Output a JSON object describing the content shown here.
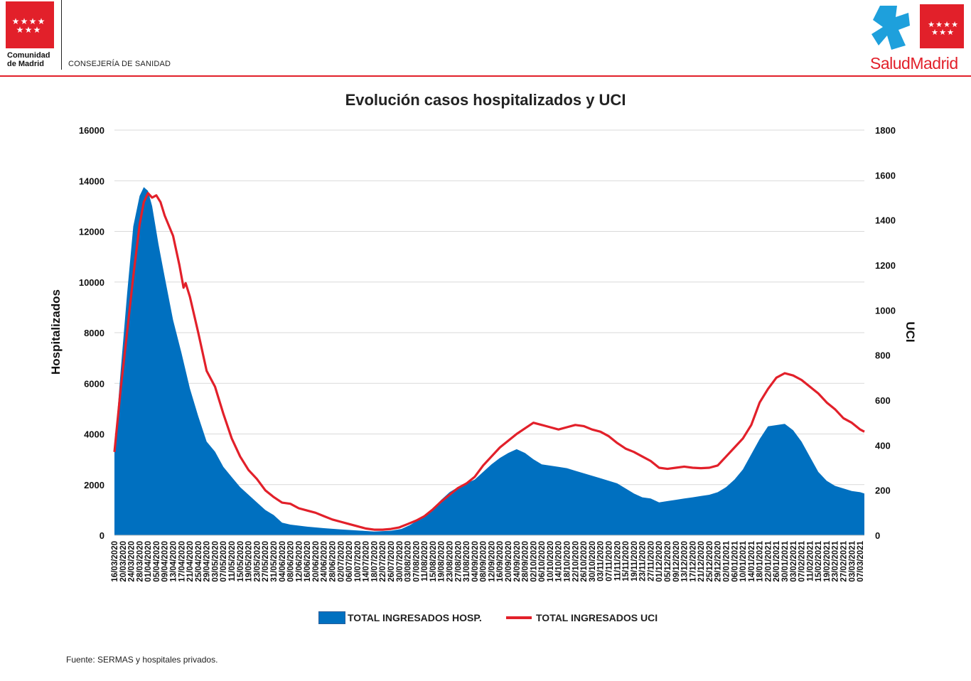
{
  "header": {
    "org_name": "Comunidad\nde Madrid",
    "department": "CONSEJERÍA DE SANIDAD",
    "brand": "SaludMadrid",
    "colors": {
      "accent_red": "#e2202a",
      "brand_blue": "#1ea0dc"
    }
  },
  "chart_data": {
    "type": "area",
    "title": "Evolución casos hospitalizados y UCI",
    "ylabel": "Hospitalizados",
    "y2label": "UCI",
    "ylim": [
      0,
      16000
    ],
    "y2lim": [
      0,
      1800
    ],
    "yticks": [
      0,
      2000,
      4000,
      6000,
      8000,
      10000,
      12000,
      14000,
      16000
    ],
    "y2ticks": [
      0,
      200,
      400,
      600,
      800,
      1000,
      1200,
      1400,
      1600,
      1800
    ],
    "grid": true,
    "legend_position": "bottom",
    "x_start": "16/03/2020",
    "x_end": "09/03/2021",
    "x_tick_labels": [
      "16/03/2020",
      "20/03/2020",
      "24/03/2020",
      "28/03/2020",
      "01/04/2020",
      "05/04/2020",
      "09/04/2020",
      "13/04/2020",
      "17/04/2020",
      "21/04/2020",
      "25/04/2020",
      "29/04/2020",
      "03/05/2020",
      "07/05/2020",
      "11/05/2020",
      "15/05/2020",
      "19/05/2020",
      "23/05/2020",
      "27/05/2020",
      "31/05/2020",
      "04/06/2020",
      "08/06/2020",
      "12/06/2020",
      "16/06/2020",
      "20/06/2020",
      "24/06/2020",
      "28/06/2020",
      "02/07/2020",
      "06/07/2020",
      "10/07/2020",
      "14/07/2020",
      "18/07/2020",
      "22/07/2020",
      "26/07/2020",
      "30/07/2020",
      "03/08/2020",
      "07/08/2020",
      "11/08/2020",
      "15/08/2020",
      "19/08/2020",
      "23/08/2020",
      "27/08/2020",
      "31/08/2020",
      "04/09/2020",
      "08/09/2020",
      "12/09/2020",
      "16/09/2020",
      "20/09/2020",
      "24/09/2020",
      "28/09/2020",
      "02/10/2020",
      "06/10/2020",
      "10/10/2020",
      "14/10/2020",
      "18/10/2020",
      "22/10/2020",
      "26/10/2020",
      "30/10/2020",
      "03/11/2020",
      "07/11/2020",
      "11/11/2020",
      "15/11/2020",
      "19/11/2020",
      "23/11/2020",
      "27/11/2020",
      "01/12/2020",
      "05/12/2020",
      "09/12/2020",
      "13/12/2020",
      "17/12/2020",
      "21/12/2020",
      "25/12/2020",
      "29/12/2020",
      "02/01/2021",
      "06/01/2021",
      "10/01/2021",
      "14/01/2021",
      "18/01/2021",
      "22/01/2021",
      "26/01/2021",
      "30/01/2021",
      "03/02/2021",
      "07/02/2021",
      "11/02/2021",
      "15/02/2021",
      "19/02/2021",
      "23/02/2021",
      "27/02/2021",
      "03/03/2021",
      "07/03/2021"
    ],
    "series": [
      {
        "name": "TOTAL INGRESADOS HOSP.",
        "type": "area",
        "axis": "left",
        "color": "#0070c0",
        "points": [
          [
            "16/03/2020",
            3300
          ],
          [
            "19/03/2020",
            6500
          ],
          [
            "22/03/2020",
            9500
          ],
          [
            "25/03/2020",
            12200
          ],
          [
            "28/03/2020",
            13400
          ],
          [
            "30/03/2020",
            13750
          ],
          [
            "01/04/2020",
            13600
          ],
          [
            "03/04/2020",
            13000
          ],
          [
            "06/04/2020",
            11500
          ],
          [
            "09/04/2020",
            10200
          ],
          [
            "13/04/2020",
            8500
          ],
          [
            "17/04/2020",
            7200
          ],
          [
            "21/04/2020",
            5800
          ],
          [
            "25/04/2020",
            4700
          ],
          [
            "29/04/2020",
            3700
          ],
          [
            "03/05/2020",
            3300
          ],
          [
            "07/05/2020",
            2700
          ],
          [
            "11/05/2020",
            2300
          ],
          [
            "15/05/2020",
            1900
          ],
          [
            "19/05/2020",
            1600
          ],
          [
            "23/05/2020",
            1300
          ],
          [
            "27/05/2020",
            1000
          ],
          [
            "31/05/2020",
            800
          ],
          [
            "04/06/2020",
            500
          ],
          [
            "08/06/2020",
            420
          ],
          [
            "16/06/2020",
            340
          ],
          [
            "24/06/2020",
            280
          ],
          [
            "02/07/2020",
            230
          ],
          [
            "10/07/2020",
            190
          ],
          [
            "18/07/2020",
            150
          ],
          [
            "26/07/2020",
            180
          ],
          [
            "31/07/2020",
            250
          ],
          [
            "04/08/2020",
            400
          ],
          [
            "11/08/2020",
            750
          ],
          [
            "15/08/2020",
            1050
          ],
          [
            "19/08/2020",
            1400
          ],
          [
            "23/08/2020",
            1700
          ],
          [
            "27/08/2020",
            1900
          ],
          [
            "31/08/2020",
            2050
          ],
          [
            "04/09/2020",
            2200
          ],
          [
            "08/09/2020",
            2500
          ],
          [
            "12/09/2020",
            2800
          ],
          [
            "16/09/2020",
            3050
          ],
          [
            "20/09/2020",
            3250
          ],
          [
            "24/09/2020",
            3400
          ],
          [
            "28/09/2020",
            3250
          ],
          [
            "02/10/2020",
            3000
          ],
          [
            "06/10/2020",
            2800
          ],
          [
            "10/10/2020",
            2750
          ],
          [
            "14/10/2020",
            2700
          ],
          [
            "18/10/2020",
            2650
          ],
          [
            "22/10/2020",
            2550
          ],
          [
            "26/10/2020",
            2450
          ],
          [
            "30/10/2020",
            2350
          ],
          [
            "03/11/2020",
            2250
          ],
          [
            "07/11/2020",
            2150
          ],
          [
            "11/11/2020",
            2050
          ],
          [
            "15/11/2020",
            1850
          ],
          [
            "19/11/2020",
            1650
          ],
          [
            "23/11/2020",
            1500
          ],
          [
            "27/11/2020",
            1450
          ],
          [
            "01/12/2020",
            1300
          ],
          [
            "05/12/2020",
            1350
          ],
          [
            "09/12/2020",
            1400
          ],
          [
            "13/12/2020",
            1450
          ],
          [
            "17/12/2020",
            1500
          ],
          [
            "21/12/2020",
            1550
          ],
          [
            "25/12/2020",
            1600
          ],
          [
            "29/12/2020",
            1700
          ],
          [
            "02/01/2021",
            1900
          ],
          [
            "06/01/2021",
            2200
          ],
          [
            "10/01/2021",
            2600
          ],
          [
            "14/01/2021",
            3200
          ],
          [
            "18/01/2021",
            3800
          ],
          [
            "22/01/2021",
            4300
          ],
          [
            "26/01/2021",
            4350
          ],
          [
            "30/01/2021",
            4400
          ],
          [
            "03/02/2021",
            4150
          ],
          [
            "07/02/2021",
            3700
          ],
          [
            "11/02/2021",
            3100
          ],
          [
            "15/02/2021",
            2500
          ],
          [
            "19/02/2021",
            2150
          ],
          [
            "23/02/2021",
            1950
          ],
          [
            "27/02/2021",
            1850
          ],
          [
            "03/03/2021",
            1750
          ],
          [
            "07/03/2021",
            1700
          ],
          [
            "09/03/2021",
            1650
          ]
        ]
      },
      {
        "name": "TOTAL INGRESADOS UCI",
        "type": "line",
        "axis": "right",
        "color": "#e2202a",
        "points": [
          [
            "16/03/2020",
            370
          ],
          [
            "19/03/2020",
            650
          ],
          [
            "22/03/2020",
            900
          ],
          [
            "25/03/2020",
            1150
          ],
          [
            "28/03/2020",
            1380
          ],
          [
            "30/03/2020",
            1480
          ],
          [
            "01/04/2020",
            1520
          ],
          [
            "03/04/2020",
            1500
          ],
          [
            "05/04/2020",
            1510
          ],
          [
            "07/04/2020",
            1480
          ],
          [
            "09/04/2020",
            1420
          ],
          [
            "13/04/2020",
            1330
          ],
          [
            "16/04/2020",
            1200
          ],
          [
            "18/04/2020",
            1100
          ],
          [
            "19/04/2020",
            1120
          ],
          [
            "21/04/2020",
            1060
          ],
          [
            "25/04/2020",
            900
          ],
          [
            "29/04/2020",
            730
          ],
          [
            "03/05/2020",
            660
          ],
          [
            "07/05/2020",
            540
          ],
          [
            "11/05/2020",
            430
          ],
          [
            "15/05/2020",
            350
          ],
          [
            "19/05/2020",
            290
          ],
          [
            "23/05/2020",
            250
          ],
          [
            "27/05/2020",
            200
          ],
          [
            "31/05/2020",
            170
          ],
          [
            "04/06/2020",
            145
          ],
          [
            "08/06/2020",
            140
          ],
          [
            "12/06/2020",
            120
          ],
          [
            "16/06/2020",
            110
          ],
          [
            "20/06/2020",
            100
          ],
          [
            "24/06/2020",
            85
          ],
          [
            "28/06/2020",
            70
          ],
          [
            "02/07/2020",
            60
          ],
          [
            "06/07/2020",
            50
          ],
          [
            "10/07/2020",
            40
          ],
          [
            "14/07/2020",
            30
          ],
          [
            "18/07/2020",
            25
          ],
          [
            "22/07/2020",
            25
          ],
          [
            "26/07/2020",
            28
          ],
          [
            "30/07/2020",
            35
          ],
          [
            "03/08/2020",
            50
          ],
          [
            "07/08/2020",
            65
          ],
          [
            "11/08/2020",
            85
          ],
          [
            "15/08/2020",
            115
          ],
          [
            "19/08/2020",
            150
          ],
          [
            "23/08/2020",
            180
          ],
          [
            "27/08/2020",
            210
          ],
          [
            "31/08/2020",
            230
          ],
          [
            "04/09/2020",
            260
          ],
          [
            "08/09/2020",
            310
          ],
          [
            "12/09/2020",
            350
          ],
          [
            "16/09/2020",
            390
          ],
          [
            "20/09/2020",
            420
          ],
          [
            "24/09/2020",
            450
          ],
          [
            "28/09/2020",
            475
          ],
          [
            "02/10/2020",
            500
          ],
          [
            "06/10/2020",
            490
          ],
          [
            "10/10/2020",
            480
          ],
          [
            "14/10/2020",
            470
          ],
          [
            "18/10/2020",
            480
          ],
          [
            "22/10/2020",
            490
          ],
          [
            "26/10/2020",
            485
          ],
          [
            "30/10/2020",
            470
          ],
          [
            "03/11/2020",
            460
          ],
          [
            "07/11/2020",
            440
          ],
          [
            "11/11/2020",
            410
          ],
          [
            "15/11/2020",
            385
          ],
          [
            "19/11/2020",
            370
          ],
          [
            "23/11/2020",
            350
          ],
          [
            "27/11/2020",
            330
          ],
          [
            "01/12/2020",
            300
          ],
          [
            "05/12/2020",
            295
          ],
          [
            "09/12/2020",
            300
          ],
          [
            "13/12/2020",
            305
          ],
          [
            "17/12/2020",
            300
          ],
          [
            "21/12/2020",
            298
          ],
          [
            "25/12/2020",
            300
          ],
          [
            "29/12/2020",
            310
          ],
          [
            "02/01/2021",
            350
          ],
          [
            "06/01/2021",
            390
          ],
          [
            "10/01/2021",
            430
          ],
          [
            "14/01/2021",
            490
          ],
          [
            "18/01/2021",
            590
          ],
          [
            "22/01/2021",
            650
          ],
          [
            "26/01/2021",
            700
          ],
          [
            "30/01/2021",
            720
          ],
          [
            "03/02/2021",
            710
          ],
          [
            "07/02/2021",
            690
          ],
          [
            "11/02/2021",
            660
          ],
          [
            "15/02/2021",
            630
          ],
          [
            "19/02/2021",
            590
          ],
          [
            "23/02/2021",
            560
          ],
          [
            "27/02/2021",
            520
          ],
          [
            "03/03/2021",
            500
          ],
          [
            "07/03/2021",
            470
          ],
          [
            "09/03/2021",
            460
          ]
        ]
      }
    ]
  },
  "footer": {
    "source": "Fuente: SERMAS y hospitales privados."
  }
}
